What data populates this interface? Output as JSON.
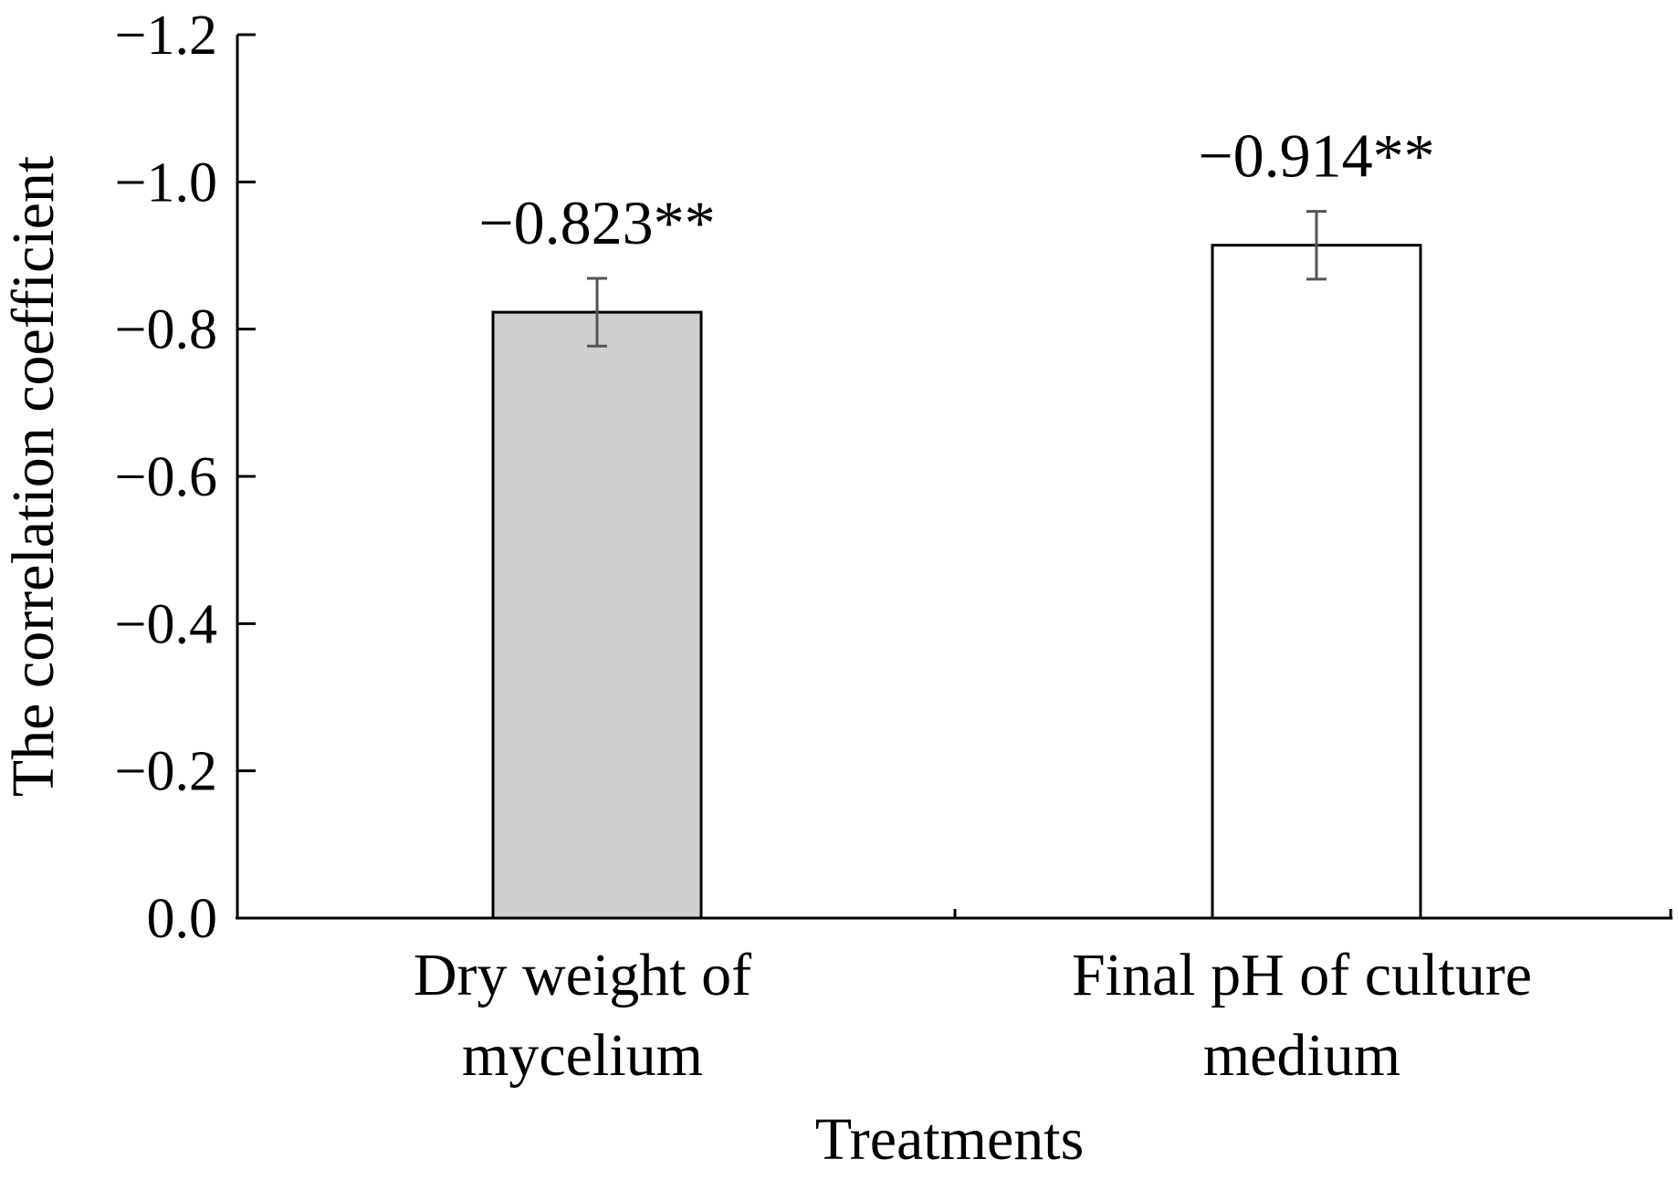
{
  "chart_data": {
    "type": "bar",
    "categories": [
      "Dry weight of mycelium",
      "Final pH of culture medium"
    ],
    "category_label_lines": [
      [
        "Dry weight of",
        "mycelium"
      ],
      [
        "Final pH of culture",
        "medium"
      ]
    ],
    "values": [
      -0.823,
      -0.914
    ],
    "errors": [
      0.046,
      0.046
    ],
    "data_labels": [
      "−0.823**",
      "−0.914**"
    ],
    "bar_colors": [
      "#d0cfd0",
      "#ffffff"
    ],
    "y_ticks": [
      0.0,
      -0.2,
      -0.4,
      -0.6,
      -0.8,
      -1.0,
      -1.2
    ],
    "y_tick_labels": [
      "0.0",
      "−0.2",
      "−0.4",
      "−0.6",
      "−0.8",
      "−1.0",
      "−1.2"
    ],
    "ylim": [
      0.0,
      -1.2
    ],
    "y_axis_direction": "negative values upward",
    "xlabel": "Treatments",
    "ylabel": "The correlation coefficient",
    "grid": false,
    "legend": "none"
  }
}
